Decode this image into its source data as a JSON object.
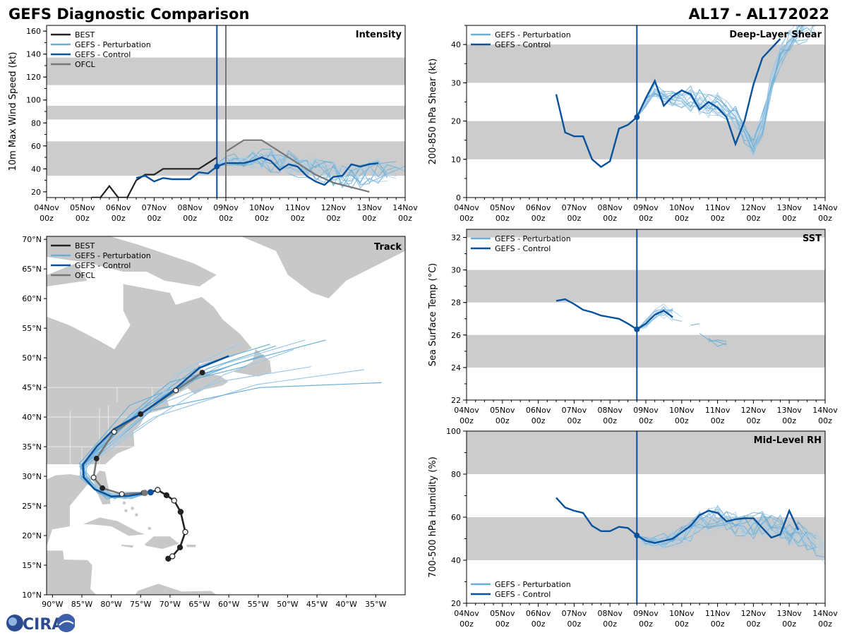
{
  "header": {
    "title_left": "GEFS Diagnostic Comparison",
    "title_right": "AL17 - AL172022"
  },
  "logo": {
    "text": "CIRA"
  },
  "colors": {
    "best": "#222222",
    "pert": "#6aaed6",
    "ctrl": "#08519c",
    "ofcl": "#777777",
    "band": "#cccccc",
    "land": "#c8c8c8"
  },
  "chart_data": [
    {
      "id": "intensity",
      "type": "line",
      "title": "Intensity",
      "ylabel": "10m Max Wind Speed (kt)",
      "ylim": [
        15,
        165
      ],
      "yticks": [
        20,
        40,
        60,
        80,
        100,
        120,
        140,
        160
      ],
      "xlim": [
        0,
        10
      ],
      "xtick_labels": [
        [
          "04Nov",
          "00z"
        ],
        [
          "05Nov",
          "00z"
        ],
        [
          "06Nov",
          "00z"
        ],
        [
          "07Nov",
          "00z"
        ],
        [
          "08Nov",
          "00z"
        ],
        [
          "09Nov",
          "00z"
        ],
        [
          "10Nov",
          "00z"
        ],
        [
          "11Nov",
          "00z"
        ],
        [
          "12Nov",
          "00z"
        ],
        [
          "13Nov",
          "00z"
        ],
        [
          "14Nov",
          "00z"
        ]
      ],
      "bands": [
        [
          34,
          64
        ],
        [
          83,
          95
        ],
        [
          113,
          137
        ]
      ],
      "vlines": [
        {
          "x": 4.75,
          "color": "ctrl"
        },
        {
          "x": 5.0,
          "color": "ofcl"
        }
      ],
      "legend": [
        "BEST",
        "GEFS - Perturbation",
        "GEFS - Control",
        "OFCL"
      ],
      "series": [
        {
          "name": "BEST",
          "color": "best",
          "x": [
            1.25,
            1.5,
            1.75,
            2.0,
            2.25,
            2.5,
            2.75,
            3.0,
            3.25,
            3.5,
            3.75,
            4.0,
            4.25,
            4.5,
            4.75
          ],
          "y": [
            15,
            15,
            25,
            15,
            15,
            30,
            35,
            35,
            40,
            40,
            40,
            40,
            40,
            45,
            50
          ]
        },
        {
          "name": "OFCL",
          "color": "ofcl",
          "x": [
            5.0,
            5.5,
            6.0,
            6.5,
            7.0,
            7.5,
            8.0,
            9.0
          ],
          "y": [
            55,
            65,
            65,
            55,
            45,
            35,
            28,
            20
          ]
        },
        {
          "name": "GEFS - Control",
          "color": "ctrl",
          "x": [
            2.5,
            2.75,
            3.0,
            3.25,
            3.5,
            3.75,
            4.0,
            4.25,
            4.5,
            4.75,
            5.0,
            5.25,
            5.5,
            5.75,
            6.0,
            6.25,
            6.5,
            6.75,
            7.0,
            7.25,
            7.5,
            7.75,
            8.0,
            8.25,
            8.5,
            8.75,
            9.0,
            9.25
          ],
          "y": [
            32,
            34,
            29,
            32,
            31,
            31,
            31,
            37,
            36,
            42,
            45,
            45,
            45,
            47,
            50,
            47,
            39,
            44,
            42,
            34,
            29,
            26,
            33,
            34,
            44,
            42,
            44,
            45
          ],
          "marker": {
            "x": 4.75,
            "y": 42
          }
        }
      ],
      "perturbations": {
        "n": 14,
        "x_start": 4.75,
        "x_end": 10.0,
        "step": 0.25,
        "seed": 3,
        "base": [
          44,
          47,
          48,
          48,
          48,
          49,
          48,
          47,
          45,
          44,
          42,
          40,
          38,
          36,
          35,
          34,
          35,
          36,
          38,
          40,
          41,
          42
        ]
      }
    },
    {
      "id": "shear",
      "type": "line",
      "title": "Deep-Layer Shear",
      "ylabel": "200-850 hPa Shear (kt)",
      "ylim": [
        0,
        45
      ],
      "yticks": [
        0,
        10,
        20,
        30,
        40
      ],
      "xlim": [
        0,
        10
      ],
      "xtick_labels": [
        [
          "04Nov",
          "00z"
        ],
        [
          "05Nov",
          "00z"
        ],
        [
          "06Nov",
          "00z"
        ],
        [
          "07Nov",
          "00z"
        ],
        [
          "08Nov",
          "00z"
        ],
        [
          "09Nov",
          "00z"
        ],
        [
          "10Nov",
          "00z"
        ],
        [
          "11Nov",
          "00z"
        ],
        [
          "12Nov",
          "00z"
        ],
        [
          "13Nov",
          "00z"
        ],
        [
          "14Nov",
          "00z"
        ]
      ],
      "bands": [
        [
          10,
          20
        ],
        [
          30,
          40
        ]
      ],
      "vlines": [
        {
          "x": 4.75,
          "color": "ctrl"
        }
      ],
      "legend": [
        "GEFS - Perturbation",
        "GEFS - Control"
      ],
      "series": [
        {
          "name": "GEFS - Control",
          "color": "ctrl",
          "x": [
            2.5,
            2.75,
            3.0,
            3.25,
            3.5,
            3.75,
            4.0,
            4.25,
            4.5,
            4.75,
            5.0,
            5.25,
            5.5,
            5.75,
            6.0,
            6.25,
            6.5,
            6.75,
            7.0,
            7.25,
            7.5,
            7.75,
            8.0,
            8.25,
            8.5,
            8.75
          ],
          "y": [
            27,
            17,
            16,
            16,
            10,
            8,
            9.5,
            18,
            19,
            21,
            26,
            30.5,
            24,
            26.5,
            28,
            27,
            23,
            25,
            23.5,
            21,
            14,
            20,
            29.5,
            36.5,
            39,
            41.5
          ],
          "marker": {
            "x": 4.75,
            "y": 21
          }
        }
      ],
      "perturbations": {
        "n": 16,
        "x_start": 4.75,
        "x_end": 9.75,
        "step": 0.25,
        "seed": 7,
        "base": [
          21,
          25,
          28,
          27,
          26,
          26,
          26,
          25,
          24,
          24,
          23,
          21,
          17,
          13,
          19,
          30,
          37,
          41,
          43,
          44,
          44
        ]
      }
    },
    {
      "id": "sst",
      "type": "line",
      "title": "SST",
      "ylabel": "Sea Surface Temp (°C)",
      "ylim": [
        22,
        32.5
      ],
      "yticks": [
        22,
        24,
        26,
        28,
        30,
        32
      ],
      "xlim": [
        0,
        10
      ],
      "xtick_labels": [
        [
          "04Nov",
          "00z"
        ],
        [
          "05Nov",
          "00z"
        ],
        [
          "06Nov",
          "00z"
        ],
        [
          "07Nov",
          "00z"
        ],
        [
          "08Nov",
          "00z"
        ],
        [
          "09Nov",
          "00z"
        ],
        [
          "10Nov",
          "00z"
        ],
        [
          "11Nov",
          "00z"
        ],
        [
          "12Nov",
          "00z"
        ],
        [
          "13Nov",
          "00z"
        ],
        [
          "14Nov",
          "00z"
        ]
      ],
      "bands": [
        [
          24,
          26
        ],
        [
          28,
          30
        ],
        [
          32,
          32.5
        ]
      ],
      "vlines": [
        {
          "x": 4.75,
          "color": "ctrl"
        }
      ],
      "legend": [
        "GEFS - Perturbation",
        "GEFS - Control"
      ],
      "series": [
        {
          "name": "GEFS - Control",
          "color": "ctrl",
          "x": [
            2.5,
            2.75,
            3.0,
            3.25,
            3.5,
            3.75,
            4.0,
            4.25,
            4.5,
            4.75,
            5.0,
            5.25,
            5.5,
            5.75
          ],
          "y": [
            28.1,
            28.2,
            27.9,
            27.55,
            27.4,
            27.2,
            27.1,
            27.0,
            26.7,
            26.35,
            26.7,
            27.25,
            27.5,
            27.1
          ],
          "marker": {
            "x": 4.75,
            "y": 26.35
          }
        }
      ],
      "perturbations": {
        "n": 10,
        "x_start": 4.75,
        "x_end": 6.0,
        "step": 0.25,
        "seed": 11,
        "base": [
          26.35,
          26.75,
          27.25,
          27.45,
          27.25,
          27.0
        ]
      },
      "fragments": [
        {
          "x": [
            6.25,
            6.5
          ],
          "y": [
            26.6,
            26.7
          ]
        },
        {
          "x": [
            6.5,
            6.75,
            7.0,
            7.25
          ],
          "y": [
            26.1,
            25.7,
            25.6,
            25.4
          ]
        },
        {
          "x": [
            6.75,
            7.0,
            7.25
          ],
          "y": [
            25.8,
            25.3,
            25.5
          ]
        },
        {
          "x": [
            6.75,
            7.0,
            7.25
          ],
          "y": [
            25.6,
            25.7,
            25.6
          ]
        }
      ]
    },
    {
      "id": "rh",
      "type": "line",
      "title": "Mid-Level RH",
      "ylabel": "700-500 hPa Humidity (%)",
      "ylim": [
        20,
        100
      ],
      "yticks": [
        20,
        40,
        60,
        80,
        100
      ],
      "xlim": [
        0,
        10
      ],
      "xtick_labels": [
        [
          "04Nov",
          "00z"
        ],
        [
          "05Nov",
          "00z"
        ],
        [
          "06Nov",
          "00z"
        ],
        [
          "07Nov",
          "00z"
        ],
        [
          "08Nov",
          "00z"
        ],
        [
          "09Nov",
          "00z"
        ],
        [
          "10Nov",
          "00z"
        ],
        [
          "11Nov",
          "00z"
        ],
        [
          "12Nov",
          "00z"
        ],
        [
          "13Nov",
          "00z"
        ],
        [
          "14Nov",
          "00z"
        ]
      ],
      "bands": [
        [
          40,
          60
        ],
        [
          80,
          100
        ]
      ],
      "vlines": [
        {
          "x": 4.75,
          "color": "ctrl"
        }
      ],
      "legend": [
        "GEFS - Perturbation",
        "GEFS - Control"
      ],
      "series": [
        {
          "name": "GEFS - Control",
          "color": "ctrl",
          "x": [
            2.5,
            2.75,
            3.0,
            3.25,
            3.5,
            3.75,
            4.0,
            4.25,
            4.5,
            4.75,
            5.0,
            5.25,
            5.5,
            5.75,
            6.0,
            6.25,
            6.5,
            6.75,
            7.0,
            7.25,
            7.5,
            7.75,
            8.0,
            8.25,
            8.5,
            8.75,
            9.0,
            9.25
          ],
          "y": [
            69,
            64.5,
            63,
            62,
            56,
            53.5,
            53.5,
            55.5,
            55,
            51.5,
            49,
            48,
            49,
            50,
            53,
            56,
            61,
            63,
            62,
            58,
            59,
            59.5,
            59.5,
            55,
            50.5,
            52,
            63,
            54
          ],
          "marker": {
            "x": 4.75,
            "y": 51.5
          }
        }
      ],
      "perturbations": {
        "n": 16,
        "x_start": 4.75,
        "x_end": 10.0,
        "step": 0.25,
        "seed": 19,
        "base": [
          51.5,
          49,
          48.5,
          49,
          50,
          52,
          54,
          57,
          59,
          60,
          59,
          57,
          56,
          56,
          57,
          56,
          55,
          53,
          52,
          50,
          47,
          44
        ]
      }
    },
    {
      "id": "track",
      "type": "map",
      "title": "Track",
      "lon_range": [
        -91,
        -30
      ],
      "lat_range": [
        10,
        70.5
      ],
      "xtick_labels": [
        "90°W",
        "85°W",
        "80°W",
        "75°W",
        "70°W",
        "65°W",
        "60°W",
        "55°W",
        "50°W",
        "45°W",
        "40°W",
        "35°W"
      ],
      "ytick_labels": [
        "10°N",
        "15°N",
        "20°N",
        "25°N",
        "30°N",
        "35°N",
        "40°N",
        "45°N",
        "50°N",
        "55°N",
        "60°N",
        "65°N",
        "70°N"
      ],
      "legend": [
        "BEST",
        "GEFS - Perturbation",
        "GEFS - Control",
        "OFCL"
      ],
      "best_track": [
        [
          -70.3,
          16.1
        ],
        [
          -69.6,
          16.5
        ],
        [
          -68.3,
          18
        ],
        [
          -67.4,
          20.6
        ],
        [
          -68.2,
          24
        ],
        [
          -69.3,
          25.9
        ],
        [
          -70.6,
          26.8
        ],
        [
          -72.1,
          27.7
        ],
        [
          -73.3,
          27.3
        ]
      ],
      "ofcl_track": [
        [
          -74.5,
          27.2
        ],
        [
          -78.2,
          27.0
        ],
        [
          -81.5,
          28.0
        ],
        [
          -83.0,
          29.8
        ],
        [
          -82.5,
          33.0
        ],
        [
          -79.5,
          37.5
        ],
        [
          -75.0,
          40.5
        ],
        [
          -69.0,
          44.5
        ],
        [
          -64.5,
          47.5
        ]
      ],
      "control_track": [
        [
          -73.3,
          27.3
        ],
        [
          -77.0,
          26.7
        ],
        [
          -80.0,
          26.6
        ],
        [
          -82.8,
          27.8
        ],
        [
          -84.7,
          29.8
        ],
        [
          -84.8,
          32.0
        ],
        [
          -82.5,
          35.0
        ],
        [
          -79.5,
          38.0
        ],
        [
          -75.0,
          40.5
        ],
        [
          -70.0,
          44.0
        ],
        [
          -65.0,
          48.3
        ],
        [
          -60.0,
          50.3
        ]
      ],
      "perturbation_ends": [
        [
          -43.5,
          53
        ],
        [
          -47,
          53
        ],
        [
          -53,
          52.3
        ],
        [
          -37,
          48
        ],
        [
          -34,
          45.8
        ],
        [
          -46,
          48.5
        ],
        [
          -54,
          50.5
        ],
        [
          -58,
          52.4
        ],
        [
          -52,
          52
        ],
        [
          -63,
          49
        ],
        [
          -57,
          48.6
        ],
        [
          -49,
          51.4
        ],
        [
          -60,
          48.5
        ]
      ]
    }
  ]
}
